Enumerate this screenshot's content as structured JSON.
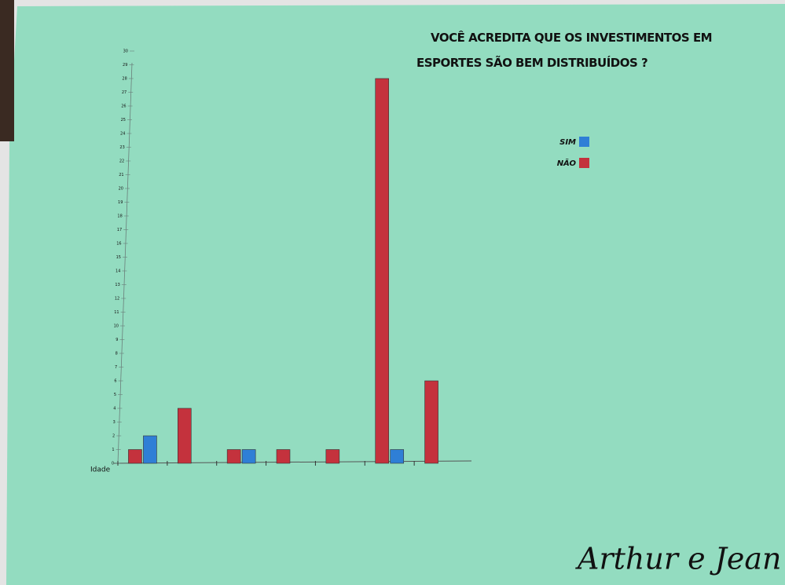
{
  "chart_data": {
    "type": "bar",
    "title": "VOCÊ ACREDITA QUE OS INVESTIMENTOS EM ESPORTES SÃO BEM DISTRIBUÍDOS ?",
    "x_label": "Idade",
    "categories": [
      null,
      null,
      null,
      null,
      null,
      null,
      null
    ],
    "series": [
      {
        "name": "SIM",
        "color": "#2f7fd6",
        "values": [
          2,
          0,
          1,
          0,
          0,
          1,
          0
        ]
      },
      {
        "name": "NÃO",
        "color": "#c4323d",
        "values": [
          1,
          4,
          1,
          1,
          1,
          28,
          6
        ]
      }
    ],
    "ylim": [
      0,
      30
    ],
    "yticks": [
      0,
      1,
      2,
      3,
      4,
      5,
      6,
      7,
      8,
      9,
      10,
      11,
      12,
      13,
      14,
      15,
      16,
      17,
      18,
      19,
      20,
      21,
      22,
      23,
      24,
      25,
      26,
      27,
      28,
      29,
      30
    ],
    "legend": "top-right",
    "signature": "Arthur e Jean"
  }
}
